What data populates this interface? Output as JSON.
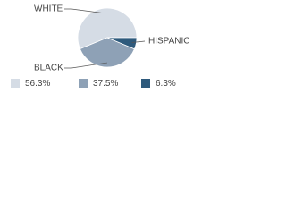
{
  "chart_data": {
    "type": "pie",
    "categories": [
      "WHITE",
      "BLACK",
      "HISPANIC"
    ],
    "values": [
      56.3,
      37.5,
      6.3
    ],
    "value_labels": [
      "56.3%",
      "37.5%",
      "6.3%"
    ],
    "colors": [
      "#d5dce5",
      "#8ea1b6",
      "#2e5a7c"
    ]
  }
}
